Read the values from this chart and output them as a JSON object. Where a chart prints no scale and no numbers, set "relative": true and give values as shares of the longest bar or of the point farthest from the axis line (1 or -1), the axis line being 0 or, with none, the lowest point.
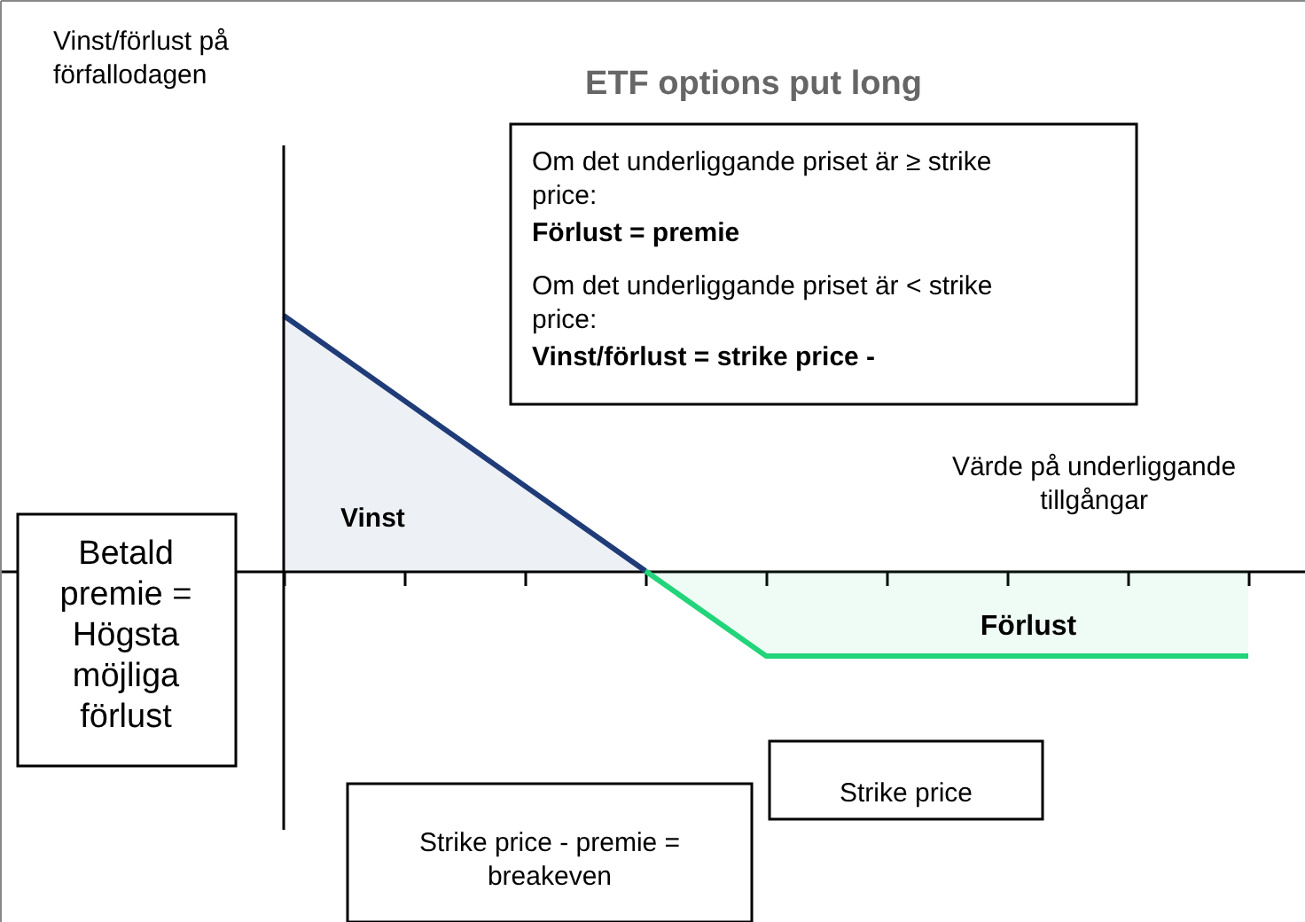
{
  "chart_data": {
    "type": "area",
    "relative": true,
    "title": "ETF options put long",
    "xlabel": "Värde på underliggande tillgångar",
    "categories": [
      null,
      null,
      null,
      null,
      null,
      null,
      null,
      null,
      null
    ],
    "series": [
      {
        "color": "#1f3c78",
        "values": [
          1,
          0.667,
          0.333,
          0,
          null,
          null,
          null,
          null,
          null
        ]
      },
      {
        "color": "#22d47a",
        "values": [
          null,
          null,
          null,
          0,
          -0.333,
          -0.333,
          -0.333,
          -0.333,
          -0.333
        ]
      }
    ],
    "annotations": [
      "Om det underliggande priset är ≥ strike price:",
      "Förlust = premie",
      "Om det underliggande priset är < strike price:",
      "Vinst/förlust = strike price -",
      "Vinst",
      "Förlust",
      "Betald premie = Högsta möjliga förlust",
      "Strike price",
      "Strike price - premie = breakeven",
      "Vinst/förlust på förfallodagen"
    ]
  }
}
